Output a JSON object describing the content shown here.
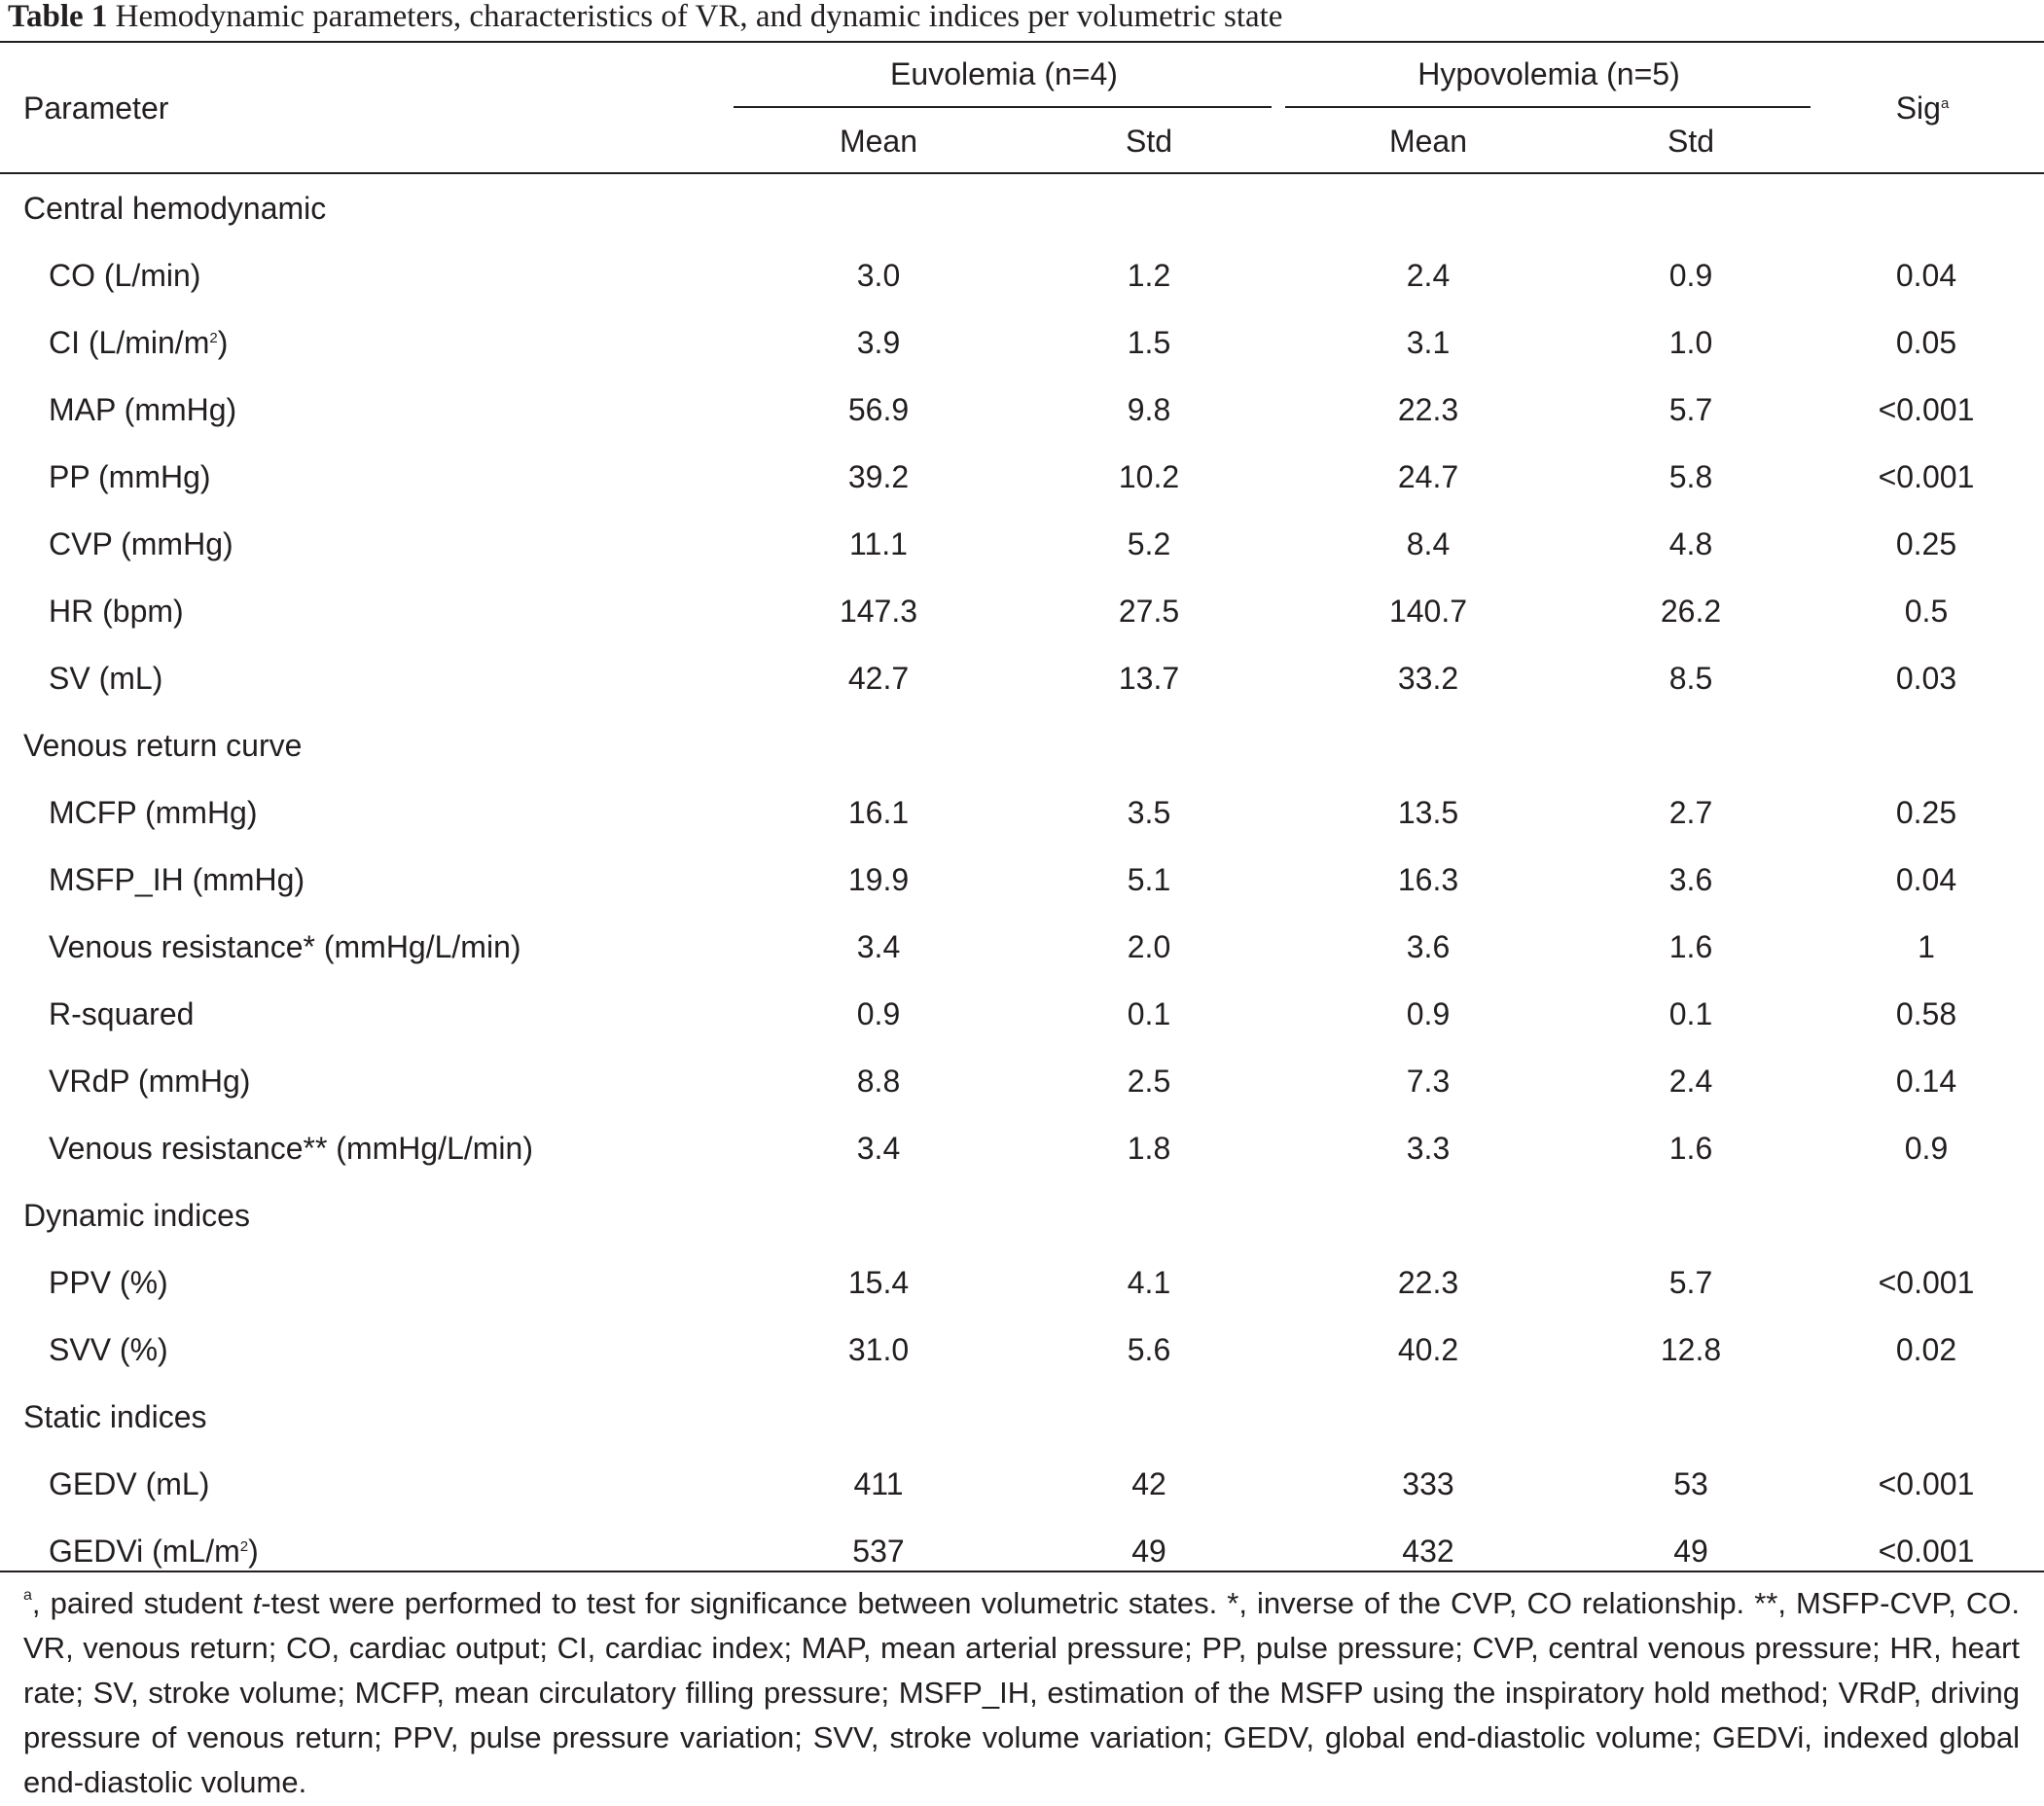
{
  "caption": {
    "label": "Table 1",
    "text": "Hemodynamic parameters, characteristics of VR, and dynamic indices per volumetric state"
  },
  "header": {
    "parameter": "Parameter",
    "euvolemia": "Euvolemia (n=4)",
    "hypovolemia": "Hypovolemia (n=5)",
    "sig": "Sig",
    "sig_sup": "a",
    "mean": "Mean",
    "std": "Std"
  },
  "rows": [
    {
      "type": "section",
      "label": "Central hemodynamic"
    },
    {
      "type": "data",
      "label": "CO (L/min)",
      "eu_mean": "3.0",
      "eu_std": "1.2",
      "hy_mean": "2.4",
      "hy_std": "0.9",
      "sig": "0.04"
    },
    {
      "type": "data",
      "label": "CI (L/min/m",
      "label_sup": "2",
      "label_tail": ")",
      "eu_mean": "3.9",
      "eu_std": "1.5",
      "hy_mean": "3.1",
      "hy_std": "1.0",
      "sig": "0.05"
    },
    {
      "type": "data",
      "label": "MAP (mmHg)",
      "eu_mean": "56.9",
      "eu_std": "9.8",
      "hy_mean": "22.3",
      "hy_std": "5.7",
      "sig": "<0.001"
    },
    {
      "type": "data",
      "label": "PP (mmHg)",
      "eu_mean": "39.2",
      "eu_std": "10.2",
      "hy_mean": "24.7",
      "hy_std": "5.8",
      "sig": "<0.001"
    },
    {
      "type": "data",
      "label": "CVP (mmHg)",
      "eu_mean": "11.1",
      "eu_std": "5.2",
      "hy_mean": "8.4",
      "hy_std": "4.8",
      "sig": "0.25"
    },
    {
      "type": "data",
      "label": "HR (bpm)",
      "eu_mean": "147.3",
      "eu_std": "27.5",
      "hy_mean": "140.7",
      "hy_std": "26.2",
      "sig": "0.5"
    },
    {
      "type": "data",
      "label": "SV (mL)",
      "eu_mean": "42.7",
      "eu_std": "13.7",
      "hy_mean": "33.2",
      "hy_std": "8.5",
      "sig": "0.03"
    },
    {
      "type": "section",
      "label": "Venous return curve"
    },
    {
      "type": "data",
      "label": "MCFP (mmHg)",
      "eu_mean": "16.1",
      "eu_std": "3.5",
      "hy_mean": "13.5",
      "hy_std": "2.7",
      "sig": "0.25"
    },
    {
      "type": "data",
      "label": "MSFP_IH (mmHg)",
      "eu_mean": "19.9",
      "eu_std": "5.1",
      "hy_mean": "16.3",
      "hy_std": "3.6",
      "sig": "0.04"
    },
    {
      "type": "data",
      "label": "Venous resistance* (mmHg/L/min)",
      "eu_mean": "3.4",
      "eu_std": "2.0",
      "hy_mean": "3.6",
      "hy_std": "1.6",
      "sig": "1"
    },
    {
      "type": "data",
      "label": "R-squared",
      "eu_mean": "0.9",
      "eu_std": "0.1",
      "hy_mean": "0.9",
      "hy_std": "0.1",
      "sig": "0.58"
    },
    {
      "type": "data",
      "label": "VRdP (mmHg)",
      "eu_mean": "8.8",
      "eu_std": "2.5",
      "hy_mean": "7.3",
      "hy_std": "2.4",
      "sig": "0.14"
    },
    {
      "type": "data",
      "label": "Venous resistance** (mmHg/L/min)",
      "eu_mean": "3.4",
      "eu_std": "1.8",
      "hy_mean": "3.3",
      "hy_std": "1.6",
      "sig": "0.9"
    },
    {
      "type": "section",
      "label": "Dynamic indices"
    },
    {
      "type": "data",
      "label": "PPV (%)",
      "eu_mean": "15.4",
      "eu_std": "4.1",
      "hy_mean": "22.3",
      "hy_std": "5.7",
      "sig": "<0.001"
    },
    {
      "type": "data",
      "label": "SVV (%)",
      "eu_mean": "31.0",
      "eu_std": "5.6",
      "hy_mean": "40.2",
      "hy_std": "12.8",
      "sig": "0.02"
    },
    {
      "type": "section",
      "label": "Static indices"
    },
    {
      "type": "data",
      "label": "GEDV (mL)",
      "eu_mean": "411",
      "eu_std": "42",
      "hy_mean": "333",
      "hy_std": "53",
      "sig": "<0.001"
    },
    {
      "type": "data",
      "label": "GEDVi (mL/m",
      "label_sup": "2",
      "label_tail": ")",
      "eu_mean": "537",
      "eu_std": "49",
      "hy_mean": "432",
      "hy_std": "49",
      "sig": "<0.001"
    }
  ],
  "footnote": {
    "sup": "a",
    "part1": ", paired student ",
    "italic": "t",
    "part2": "-test were performed to test for significance between volumetric states. *, inverse of the CVP, CO relationship. **, MSFP-CVP, CO. VR, venous return; CO, cardiac output; CI, cardiac index; MAP, mean arterial pressure; PP, pulse pressure; CVP, central venous pressure; HR, heart rate; SV, stroke volume; MCFP, mean circulatory filling pressure; MSFP_IH, estimation of the MSFP using the inspiratory hold method; VRdP, driving pressure of venous return; PPV, pulse pressure variation; SVV, stroke volume variation; GEDV, global end-diastolic volume; GEDVi, indexed global end-diastolic volume."
  }
}
